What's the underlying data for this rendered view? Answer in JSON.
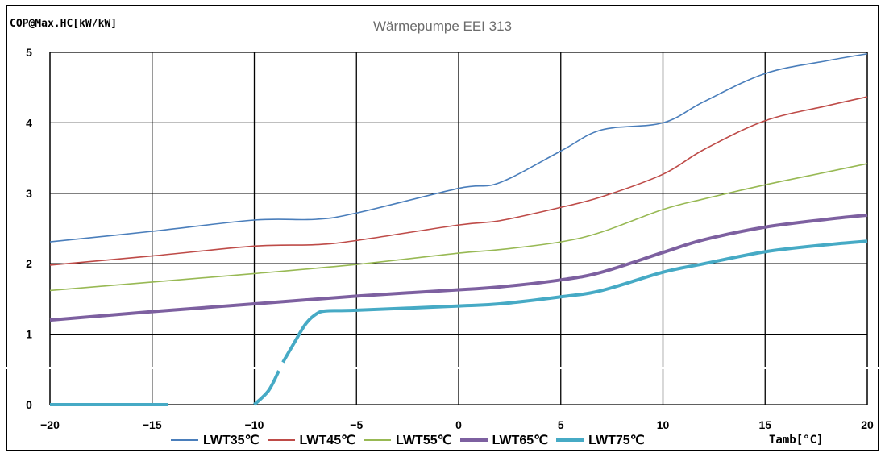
{
  "chart_data": {
    "type": "line",
    "title": "Wärmepumpe EEI 313",
    "ylabel": "COP@Max.HC[kW/kW]",
    "xlabel": "Tamb[°C]",
    "xlim": [
      -20,
      20
    ],
    "ylim": [
      0,
      5
    ],
    "x_ticks": [
      "−20",
      "−15",
      "−10",
      "−5",
      "0",
      "5",
      "10",
      "15",
      "20"
    ],
    "y_ticks": [
      "0",
      "1",
      "2",
      "3",
      "4",
      "5"
    ],
    "grid": true,
    "legend_position": "bottom",
    "series": [
      {
        "name": "LWT35℃",
        "color": "#4a7ebb",
        "width": "thin",
        "points": [
          [
            -20,
            2.31
          ],
          [
            -15,
            2.46
          ],
          [
            -10,
            2.62
          ],
          [
            -7,
            2.63
          ],
          [
            -5,
            2.72
          ],
          [
            0,
            3.07
          ],
          [
            2,
            3.15
          ],
          [
            5,
            3.6
          ],
          [
            7,
            3.9
          ],
          [
            10,
            4.0
          ],
          [
            12,
            4.3
          ],
          [
            15,
            4.7
          ],
          [
            18,
            4.88
          ],
          [
            20,
            4.98
          ]
        ]
      },
      {
        "name": "LWT45℃",
        "color": "#be4b48",
        "width": "thin",
        "points": [
          [
            -20,
            1.98
          ],
          [
            -15,
            2.11
          ],
          [
            -10,
            2.25
          ],
          [
            -7,
            2.27
          ],
          [
            -5,
            2.33
          ],
          [
            0,
            2.55
          ],
          [
            2,
            2.61
          ],
          [
            5,
            2.8
          ],
          [
            7,
            2.95
          ],
          [
            10,
            3.27
          ],
          [
            12,
            3.62
          ],
          [
            15,
            4.03
          ],
          [
            18,
            4.24
          ],
          [
            20,
            4.37
          ]
        ]
      },
      {
        "name": "LWT55℃",
        "color": "#98b954",
        "width": "thin",
        "points": [
          [
            -20,
            1.62
          ],
          [
            -15,
            1.74
          ],
          [
            -10,
            1.86
          ],
          [
            -5,
            1.99
          ],
          [
            0,
            2.15
          ],
          [
            2,
            2.2
          ],
          [
            5,
            2.31
          ],
          [
            7,
            2.45
          ],
          [
            10,
            2.77
          ],
          [
            12,
            2.92
          ],
          [
            15,
            3.12
          ],
          [
            18,
            3.3
          ],
          [
            20,
            3.42
          ]
        ]
      },
      {
        "name": "LWT65℃",
        "color": "#7d60a0",
        "width": "thick",
        "points": [
          [
            -20,
            1.2
          ],
          [
            -15,
            1.32
          ],
          [
            -10,
            1.43
          ],
          [
            -5,
            1.54
          ],
          [
            0,
            1.63
          ],
          [
            2,
            1.67
          ],
          [
            5,
            1.77
          ],
          [
            7,
            1.88
          ],
          [
            10,
            2.16
          ],
          [
            12,
            2.34
          ],
          [
            15,
            2.52
          ],
          [
            18,
            2.63
          ],
          [
            20,
            2.69
          ]
        ]
      },
      {
        "name": "LWT75℃",
        "color": "#46aac5",
        "width": "thick",
        "segments": [
          [
            [
              -20,
              0.0
            ],
            [
              -14.2,
              0.0
            ]
          ],
          [
            [
              -10,
              0.0
            ],
            [
              -9.3,
              0.2
            ],
            [
              -8.8,
              0.48
            ]
          ],
          [
            [
              -8.6,
              0.6
            ],
            [
              -8.0,
              0.9
            ],
            [
              -7.5,
              1.14
            ],
            [
              -7.0,
              1.28
            ],
            [
              -6.5,
              1.33
            ],
            [
              -5,
              1.34
            ],
            [
              0,
              1.4
            ],
            [
              2,
              1.43
            ],
            [
              5,
              1.53
            ],
            [
              7,
              1.62
            ],
            [
              10,
              1.88
            ],
            [
              12,
              2.0
            ],
            [
              15,
              2.17
            ],
            [
              18,
              2.27
            ],
            [
              20,
              2.32
            ]
          ]
        ]
      }
    ]
  }
}
